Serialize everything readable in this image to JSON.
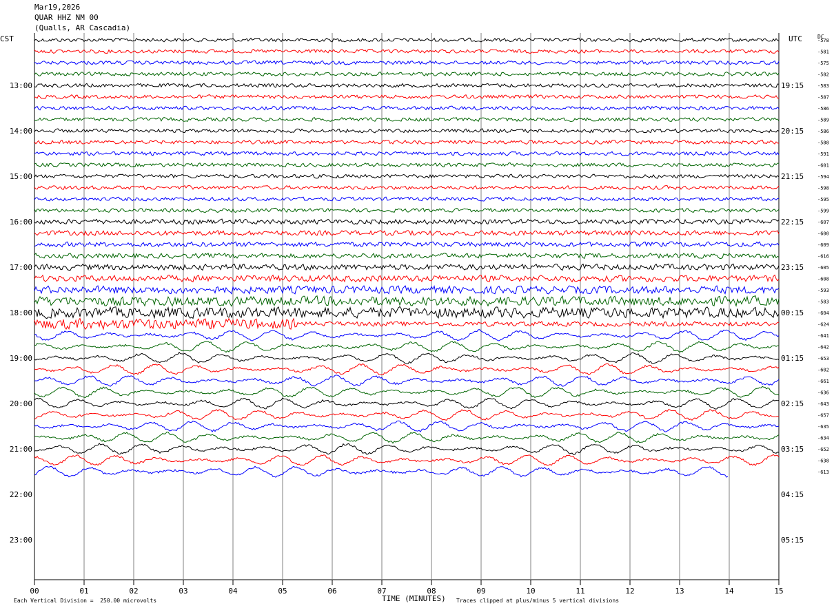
{
  "header": {
    "date": "Mar19,2026",
    "station": "QUAR HHZ NM 00",
    "location": "(Qualls, AR Cascadia)"
  },
  "left_axis_label": "CST",
  "right_axis_label": "UTC",
  "dc_label": "DC",
  "footer": {
    "vertical_division": "Each Vertical Division =  250.00 microvolts",
    "xlabel": "TIME (MINUTES)",
    "clip_note": "Traces clipped at plus/minus 5 vertical divisions"
  },
  "trace_colors": [
    "#000000",
    "#ff0000",
    "#0000ff",
    "#006400"
  ],
  "chart_data": {
    "type": "line",
    "xlabel": "TIME (MINUTES)",
    "xlim": [
      0,
      15
    ],
    "x_ticks": [
      "00",
      "01",
      "02",
      "03",
      "04",
      "05",
      "06",
      "07",
      "08",
      "09",
      "10",
      "11",
      "12",
      "13",
      "14",
      "15"
    ],
    "cst_labels": [
      "13:00",
      "14:00",
      "15:00",
      "16:00",
      "17:00",
      "18:00",
      "19:00",
      "20:00",
      "21:00",
      "22:00",
      "23:00"
    ],
    "utc_labels": [
      "19:15",
      "20:15",
      "21:15",
      "22:15",
      "23:15",
      "00:15",
      "01:15",
      "02:15",
      "03:15",
      "04:15",
      "05:15"
    ],
    "dc_offsets": [
      -578,
      -581,
      -575,
      -582,
      -583,
      -587,
      -586,
      -589,
      -586,
      -588,
      -591,
      -601,
      -594,
      -598,
      -595,
      -599,
      -607,
      -600,
      -609,
      -616,
      -605,
      -608,
      -593,
      -583,
      -604,
      -624,
      -641,
      -642,
      -653,
      -602,
      -661,
      -636,
      -643,
      -657,
      -635,
      -634,
      -652,
      -638,
      -613
    ],
    "grid": true
  }
}
